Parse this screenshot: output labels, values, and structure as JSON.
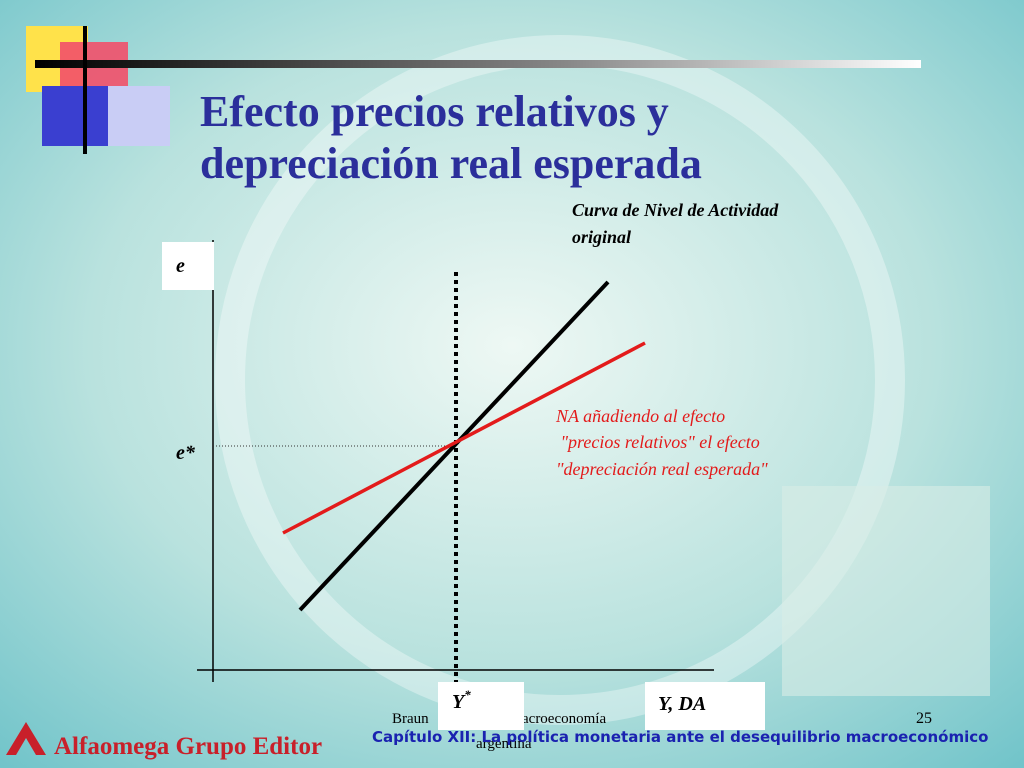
{
  "title": [
    "Efecto precios relativos y",
    "depreciación real esperada"
  ],
  "curve_label": [
    "Curva de Nivel de Actividad",
    "original"
  ],
  "y_axis_label": "e",
  "y_star": "e*",
  "na_label": [
    "NA añadiendo al efecto",
    " \"precios relativos\" el efecto",
    "\"depreciación real esperada\""
  ],
  "x_star": {
    "base": "Y",
    "sup": "*"
  },
  "x_axis_label": "Y, DA",
  "footer": {
    "author": "Braun",
    "book": "acroeconomía",
    "book_line2": "argentina",
    "page": "25",
    "chapter": "Capítulo XII: La política monetaria ante el desequilibrio macroeconómico",
    "publisher": "Alfaomega Grupo Editor"
  }
}
